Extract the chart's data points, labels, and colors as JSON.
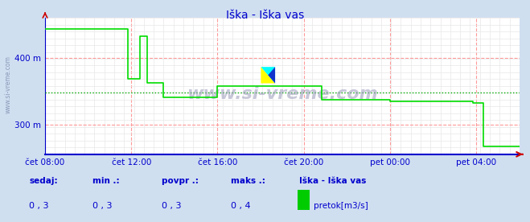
{
  "title": "Iška - Iška vas",
  "bg_color": "#d0dff0",
  "plot_bg_color": "#ffffff",
  "grid_color_major": "#ff9999",
  "grid_color_minor": "#e8e8e8",
  "line_color": "#00dd00",
  "axis_color": "#0000cc",
  "avg_line_color": "#00aa00",
  "x_labels": [
    "čet 08:00",
    "čet 12:00",
    "čet 16:00",
    "čet 20:00",
    "pet 00:00",
    "pet 04:00"
  ],
  "x_ticks_norm": [
    0.0,
    0.1818,
    0.3636,
    0.5454,
    0.7272,
    0.909
  ],
  "y_ticks": [
    300,
    400
  ],
  "y_labels": [
    "300 m",
    "400 m"
  ],
  "ylim": [
    255,
    460
  ],
  "xlim_days": [
    0,
    264
  ],
  "legend_label": "pretok[m3/s]",
  "legend_color": "#00cc00",
  "footer_labels": [
    "sedaj:",
    "min .:",
    "povpr .:",
    "maks .:"
  ],
  "footer_values": [
    "0 , 3",
    "0 , 3",
    "0 , 3",
    "0 , 4"
  ],
  "footer_series": "Iška - Iška vas",
  "watermark_text": "www.si-vreme.com",
  "avg_value": 348,
  "data_x": [
    0,
    46,
    46,
    53,
    53,
    57,
    57,
    66,
    66,
    96,
    96,
    154,
    154,
    192,
    192,
    238,
    238,
    244,
    244,
    264
  ],
  "data_y": [
    443,
    443,
    368,
    368,
    432,
    432,
    362,
    362,
    340,
    340,
    358,
    358,
    337,
    337,
    335,
    335,
    332,
    332,
    267,
    267
  ],
  "right_arrow_color": "#cc0000",
  "top_arrow_color": "#cc0000"
}
